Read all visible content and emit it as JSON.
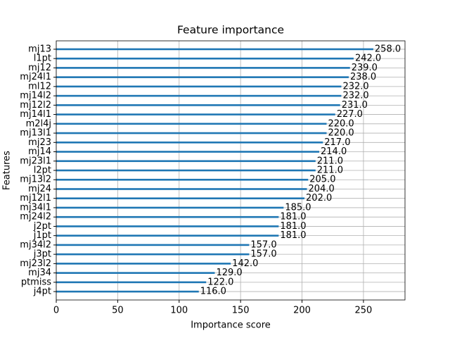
{
  "chart_data": {
    "type": "barh",
    "title": "Feature importance",
    "x_label": "Importance score",
    "y_label": "Features",
    "categories": [
      "mj13",
      "l1pt",
      "mj12",
      "mj24l1",
      "ml12",
      "mj14l2",
      "mj12l2",
      "mj14l1",
      "m2l4j",
      "mj13l1",
      "mj23",
      "mj14",
      "mj23l1",
      "l2pt",
      "mj13l2",
      "mj24",
      "mj12l1",
      "mj34l1",
      "mj24l2",
      "j2pt",
      "j1pt",
      "mj34l2",
      "j3pt",
      "mj23l2",
      "mj34",
      "ptmiss",
      "j4pt"
    ],
    "values": [
      258,
      242,
      239,
      238,
      232,
      232,
      231,
      227,
      220,
      220,
      217,
      214,
      211,
      211,
      205,
      204,
      202,
      185,
      181,
      181,
      181,
      157,
      157,
      142,
      129,
      122,
      116
    ],
    "value_labels": [
      "258.0",
      "242.0",
      "239.0",
      "238.0",
      "232.0",
      "232.0",
      "231.0",
      "227.0",
      "220.0",
      "220.0",
      "217.0",
      "214.0",
      "211.0",
      "211.0",
      "205.0",
      "204.0",
      "202.0",
      "185.0",
      "181.0",
      "181.0",
      "181.0",
      "157.0",
      "157.0",
      "142.0",
      "129.0",
      "122.0",
      "116.0"
    ],
    "color": "#1f77b4",
    "xlim": [
      0,
      283.8
    ],
    "xticks": [
      0,
      50,
      100,
      150,
      200,
      250
    ],
    "grid": true
  }
}
